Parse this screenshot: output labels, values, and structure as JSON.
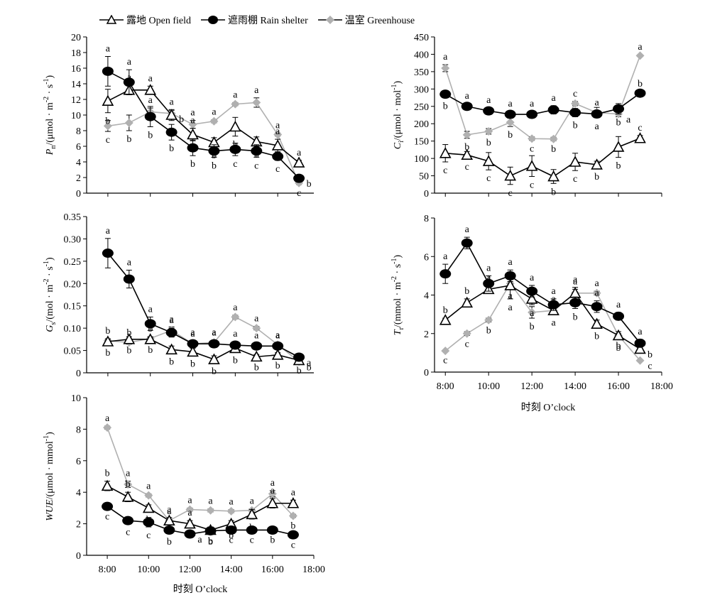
{
  "legend": {
    "open": "露地 Open field",
    "rain": "遮雨棚 Rain shelter",
    "green": "温室 Greenhouse"
  },
  "colors": {
    "open": "#000000",
    "rain": "#000000",
    "green": "#b0b0b0"
  },
  "chart_data": [
    {
      "type": "line",
      "id": "pn",
      "ylabel": "Pn/(μmol · m-2 · s-1)",
      "ylabel_parts": {
        "main": "P",
        "sub": "n",
        "rest": "/(μmol · m",
        "sup1": "-2",
        "mid": " · s",
        "sup2": "-1",
        "end": ")"
      },
      "ylim": [
        0,
        20
      ],
      "yticks": [
        0,
        2,
        4,
        6,
        8,
        10,
        12,
        14,
        16,
        18,
        20
      ],
      "x": [
        8,
        9,
        10,
        11,
        12,
        13,
        14,
        15,
        16,
        17
      ],
      "series": [
        {
          "key": "open",
          "values": [
            11.8,
            13.2,
            13.2,
            10,
            7.5,
            6.5,
            8.5,
            6.6,
            6.1,
            3.9
          ],
          "err": [
            1.5,
            0.6,
            0.5,
            0.7,
            0.8,
            0.6,
            1.2,
            0.6,
            0.8,
            0.3
          ],
          "sig": [
            "b",
            "a",
            "a",
            "a",
            "a",
            "b",
            "b",
            "b",
            "a",
            "a"
          ]
        },
        {
          "key": "rain",
          "values": [
            15.6,
            14.2,
            9.8,
            7.8,
            5.8,
            5.4,
            5.6,
            5.4,
            4.7,
            1.9
          ],
          "err": [
            1.9,
            1.6,
            1.3,
            1,
            1,
            0.8,
            0.8,
            0.8,
            0.5,
            0.3
          ],
          "sig": [
            "a",
            "a",
            "b",
            "b",
            "b",
            "b",
            "c",
            "c",
            "c",
            "b"
          ]
        },
        {
          "key": "green",
          "values": [
            8.6,
            9,
            10.4,
            10.2,
            8.8,
            9.2,
            11.4,
            11.6,
            7.5,
            1.3
          ],
          "err": [
            0.7,
            1,
            0.5,
            0.4,
            0.5,
            0.2,
            0.2,
            0.6,
            0.2,
            0.2
          ],
          "sig": [
            "c",
            "b",
            "a",
            "b",
            "a",
            "a",
            "a",
            "a",
            "a",
            "c"
          ]
        }
      ]
    },
    {
      "type": "line",
      "id": "ci",
      "ylabel": "Ci/(μmol · mol-1)",
      "ylabel_parts": {
        "main": "C",
        "sub": "i",
        "rest": "/(μmol · mol",
        "sup1": "-1",
        "mid": "",
        "sup2": "",
        "end": ")"
      },
      "ylim": [
        0,
        450
      ],
      "yticks": [
        0,
        50,
        100,
        150,
        200,
        250,
        300,
        350,
        400,
        450
      ],
      "x": [
        8,
        9,
        10,
        11,
        12,
        13,
        14,
        15,
        16,
        17
      ],
      "series": [
        {
          "key": "open",
          "values": [
            115,
            110,
            92,
            50,
            78,
            48,
            90,
            82,
            133,
            158
          ],
          "err": [
            25,
            10,
            25,
            25,
            30,
            20,
            25,
            10,
            30,
            8
          ],
          "sig": [
            "c",
            "c",
            "c",
            "c",
            "c",
            "b",
            "c",
            "b",
            "b",
            "c"
          ]
        },
        {
          "key": "rain",
          "values": [
            285,
            250,
            237,
            227,
            227,
            240,
            232,
            228,
            243,
            288
          ],
          "err": [
            10,
            8,
            8,
            8,
            8,
            12,
            12,
            10,
            15,
            5
          ],
          "sig": [
            "b",
            "a",
            "a",
            "a",
            "a",
            "a",
            "b",
            "a",
            "b",
            "b"
          ]
        },
        {
          "key": "green",
          "values": [
            360,
            168,
            178,
            204,
            157,
            156,
            258,
            232,
            228,
            396
          ],
          "err": [
            10,
            10,
            8,
            12,
            5,
            5,
            6,
            15,
            8,
            3
          ],
          "sig": [
            "a",
            "b",
            "b",
            "b",
            "c",
            "b",
            "c",
            "a",
            "a",
            "a"
          ]
        }
      ]
    },
    {
      "type": "line",
      "id": "gs",
      "ylabel": "Gs/(mol · m-2 · s-1)",
      "ylabel_parts": {
        "main": "G",
        "sub": "s",
        "rest": "/(mol · m",
        "sup1": "-2",
        "mid": " · s",
        "sup2": "-1",
        "end": ")"
      },
      "ylim": [
        0,
        0.35
      ],
      "yticks": [
        0,
        0.05,
        0.1,
        0.15,
        0.2,
        0.25,
        0.3,
        0.35
      ],
      "ytick_labels": [
        "0",
        "0.05",
        "0.10",
        "0.15",
        "0.20",
        "0.25",
        "0.30",
        "0.35"
      ],
      "x": [
        8,
        9,
        10,
        11,
        12,
        13,
        14,
        15,
        16,
        17
      ],
      "series": [
        {
          "key": "open",
          "values": [
            0.07,
            0.075,
            0.075,
            0.052,
            0.047,
            0.03,
            0.055,
            0.036,
            0.04,
            0.028
          ],
          "err": [
            0.006,
            0.006,
            0.005,
            0.008,
            0.008,
            0.008,
            0.008,
            0.005,
            0.005,
            0.004
          ],
          "sig": [
            "b",
            "b",
            "b",
            "b",
            "b",
            "b",
            "b",
            "b",
            "b",
            "b"
          ]
        },
        {
          "key": "rain",
          "values": [
            0.268,
            0.21,
            0.11,
            0.09,
            0.065,
            0.065,
            0.062,
            0.06,
            0.06,
            0.035
          ],
          "err": [
            0.033,
            0.02,
            0.015,
            0.01,
            0.008,
            0.008,
            0.008,
            0.006,
            0.006,
            0.004
          ],
          "sig": [
            "a",
            "a",
            "a",
            "a",
            "a",
            "a",
            "a",
            "a",
            "a",
            "a"
          ]
        },
        {
          "key": "green",
          "values": [
            0.072,
            0.068,
            0.077,
            0.095,
            0.065,
            0.068,
            0.125,
            0.1,
            0.063,
            0.025
          ],
          "err": [
            0.004,
            0.004,
            0.004,
            0.008,
            0.005,
            0.004,
            0.004,
            0.004,
            0.004,
            0.003
          ],
          "sig": [
            "b",
            "b",
            "b",
            "a",
            "a",
            "a",
            "a",
            "a",
            "a",
            "b"
          ]
        }
      ]
    },
    {
      "type": "line",
      "id": "tr",
      "ylabel": "Tr/(mmol · m-2 · s-1)",
      "ylabel_parts": {
        "main": "T",
        "sub": "r",
        "rest": "/(mmol · m",
        "sup1": "-2",
        "mid": " · s",
        "sup2": "-1",
        "end": ")"
      },
      "ylim": [
        0,
        8
      ],
      "yticks": [
        0,
        2,
        4,
        6,
        8
      ],
      "x": [
        8,
        9,
        10,
        11,
        12,
        13,
        14,
        15,
        16,
        17
      ],
      "series": [
        {
          "key": "open",
          "values": [
            2.7,
            3.6,
            4.3,
            4.5,
            3.8,
            3.2,
            4.1,
            2.5,
            1.9,
            1.2
          ],
          "err": [
            0.1,
            0.2,
            0.2,
            0.7,
            0.3,
            0.2,
            0.3,
            0.2,
            0.2,
            0.2
          ],
          "sig": [
            "b",
            "b",
            "a",
            "a",
            "a",
            "a",
            "a",
            "b",
            "b",
            "b"
          ]
        },
        {
          "key": "rain",
          "values": [
            5.1,
            6.7,
            4.6,
            5,
            4.2,
            3.5,
            3.6,
            3.4,
            2.9,
            1.5
          ],
          "err": [
            0.5,
            0.3,
            0.4,
            0.3,
            0.3,
            0.3,
            0.3,
            0.3,
            0.2,
            0.2
          ],
          "sig": [
            "a",
            "a",
            "a",
            "a",
            "a",
            "a",
            "b",
            "a",
            "a",
            "a"
          ]
        },
        {
          "key": "green",
          "values": [
            1.1,
            2,
            2.7,
            4.6,
            3.1,
            3.2,
            4.1,
            4.1,
            1.9,
            0.6
          ],
          "err": [
            0.05,
            0.1,
            0.1,
            0.2,
            0.3,
            0.2,
            0.2,
            0.1,
            0.1,
            0.05
          ],
          "sig": [
            "c",
            "c",
            "b",
            "a",
            "b",
            "a",
            "a",
            "a",
            "b",
            "c"
          ]
        }
      ]
    },
    {
      "type": "line",
      "id": "wue",
      "ylabel": "WUE/(μmol · mmol-1)",
      "ylabel_parts": {
        "main": "WUE",
        "sub": "",
        "rest": "/(μmol · mmol",
        "sup1": "-1",
        "mid": "",
        "sup2": "",
        "end": ")"
      },
      "ylim": [
        0,
        10
      ],
      "yticks": [
        0,
        2,
        4,
        6,
        8,
        10
      ],
      "x": [
        8,
        9,
        10,
        11,
        12,
        13,
        14,
        15,
        16,
        17
      ],
      "series": [
        {
          "key": "open",
          "values": [
            4.4,
            3.7,
            3,
            2.2,
            2,
            1.6,
            2,
            2.6,
            3.3,
            3.3
          ],
          "err": [
            0.3,
            0.3,
            0.2,
            0.2,
            0.2,
            0.2,
            0.2,
            0.3,
            0.3,
            0.2
          ],
          "sig": [
            "b",
            "b",
            "b",
            "a",
            "a",
            "b",
            "b",
            "b",
            "a",
            "a"
          ]
        },
        {
          "key": "rain",
          "values": [
            3.1,
            2.2,
            2.1,
            1.6,
            1.35,
            1.55,
            1.6,
            1.6,
            1.6,
            1.3
          ],
          "err": [
            0.1,
            0.2,
            0.3,
            0.2,
            0.1,
            0.1,
            0.1,
            0.1,
            0.1,
            0.1
          ],
          "sig": [
            "c",
            "c",
            "c",
            "b",
            "a",
            "b",
            "c",
            "c",
            "b",
            "c"
          ]
        },
        {
          "key": "green",
          "values": [
            8.1,
            4.5,
            3.8,
            2.2,
            2.9,
            2.85,
            2.8,
            2.85,
            3.9,
            2.5
          ],
          "err": [
            0.1,
            0.2,
            0.1,
            0.1,
            0.1,
            0.1,
            0.1,
            0.1,
            0.2,
            0.1
          ],
          "sig": [
            "a",
            "a",
            "a",
            "a",
            "a",
            "a",
            "a",
            "a",
            "a",
            "b"
          ]
        }
      ]
    }
  ],
  "x_axis": {
    "ticks": [
      8,
      10,
      12,
      14,
      16,
      18
    ],
    "tick_labels": [
      "8:00",
      "10:00",
      "12:00",
      "14:00",
      "16:00",
      "18:00"
    ],
    "title": "时刻 O’clock"
  }
}
